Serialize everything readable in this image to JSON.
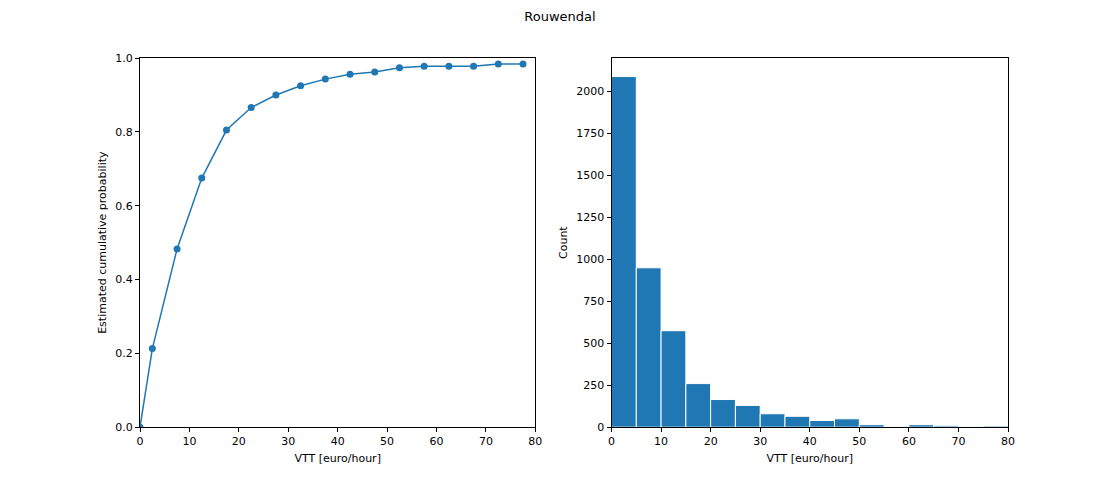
{
  "title": "Rouwendal",
  "chart_data": [
    {
      "type": "line",
      "x": [
        0,
        2.5,
        7.5,
        12.5,
        17.5,
        22.5,
        27.5,
        32.5,
        37.5,
        42.5,
        47.5,
        52.5,
        57.5,
        62.5,
        67.5,
        72.5,
        77.5
      ],
      "values": [
        0,
        0.213,
        0.483,
        0.675,
        0.805,
        0.866,
        0.9,
        0.925,
        0.943,
        0.956,
        0.962,
        0.974,
        0.978,
        0.978,
        0.978,
        0.984,
        0.984
      ],
      "color": "#1f77b4",
      "marker": "circle",
      "x_label": "VTT [euro/hour]",
      "y_label": "Estimated cumulative probability",
      "xlim": [
        0,
        80
      ],
      "xticks": [
        0,
        10,
        20,
        30,
        40,
        50,
        60,
        70,
        80
      ],
      "ylim": [
        0,
        1
      ],
      "yticks": [
        {
          "value": 0,
          "label": "0.0"
        },
        0.2,
        0.4,
        0.6,
        0.8,
        {
          "value": 1,
          "label": "1.0"
        }
      ],
      "grid": false
    },
    {
      "type": "histogram",
      "bins": [
        0,
        5,
        10,
        15,
        20,
        25,
        30,
        35,
        40,
        45,
        50,
        55,
        60,
        65,
        70,
        75,
        80
      ],
      "values": [
        2090,
        950,
        575,
        260,
        165,
        130,
        80,
        65,
        40,
        50,
        15,
        2,
        15,
        8,
        2,
        7
      ],
      "color": "#1f77b4",
      "x_label": "VTT [euro/hour]",
      "y_label": "Count",
      "xlim": [
        0,
        80
      ],
      "xticks": [
        0,
        10,
        20,
        30,
        40,
        50,
        60,
        70,
        80
      ],
      "ylim": [
        0,
        2200
      ],
      "yticks": [
        0,
        250,
        500,
        750,
        1000,
        1250,
        1500,
        1750,
        2000
      ],
      "grid": false
    }
  ]
}
